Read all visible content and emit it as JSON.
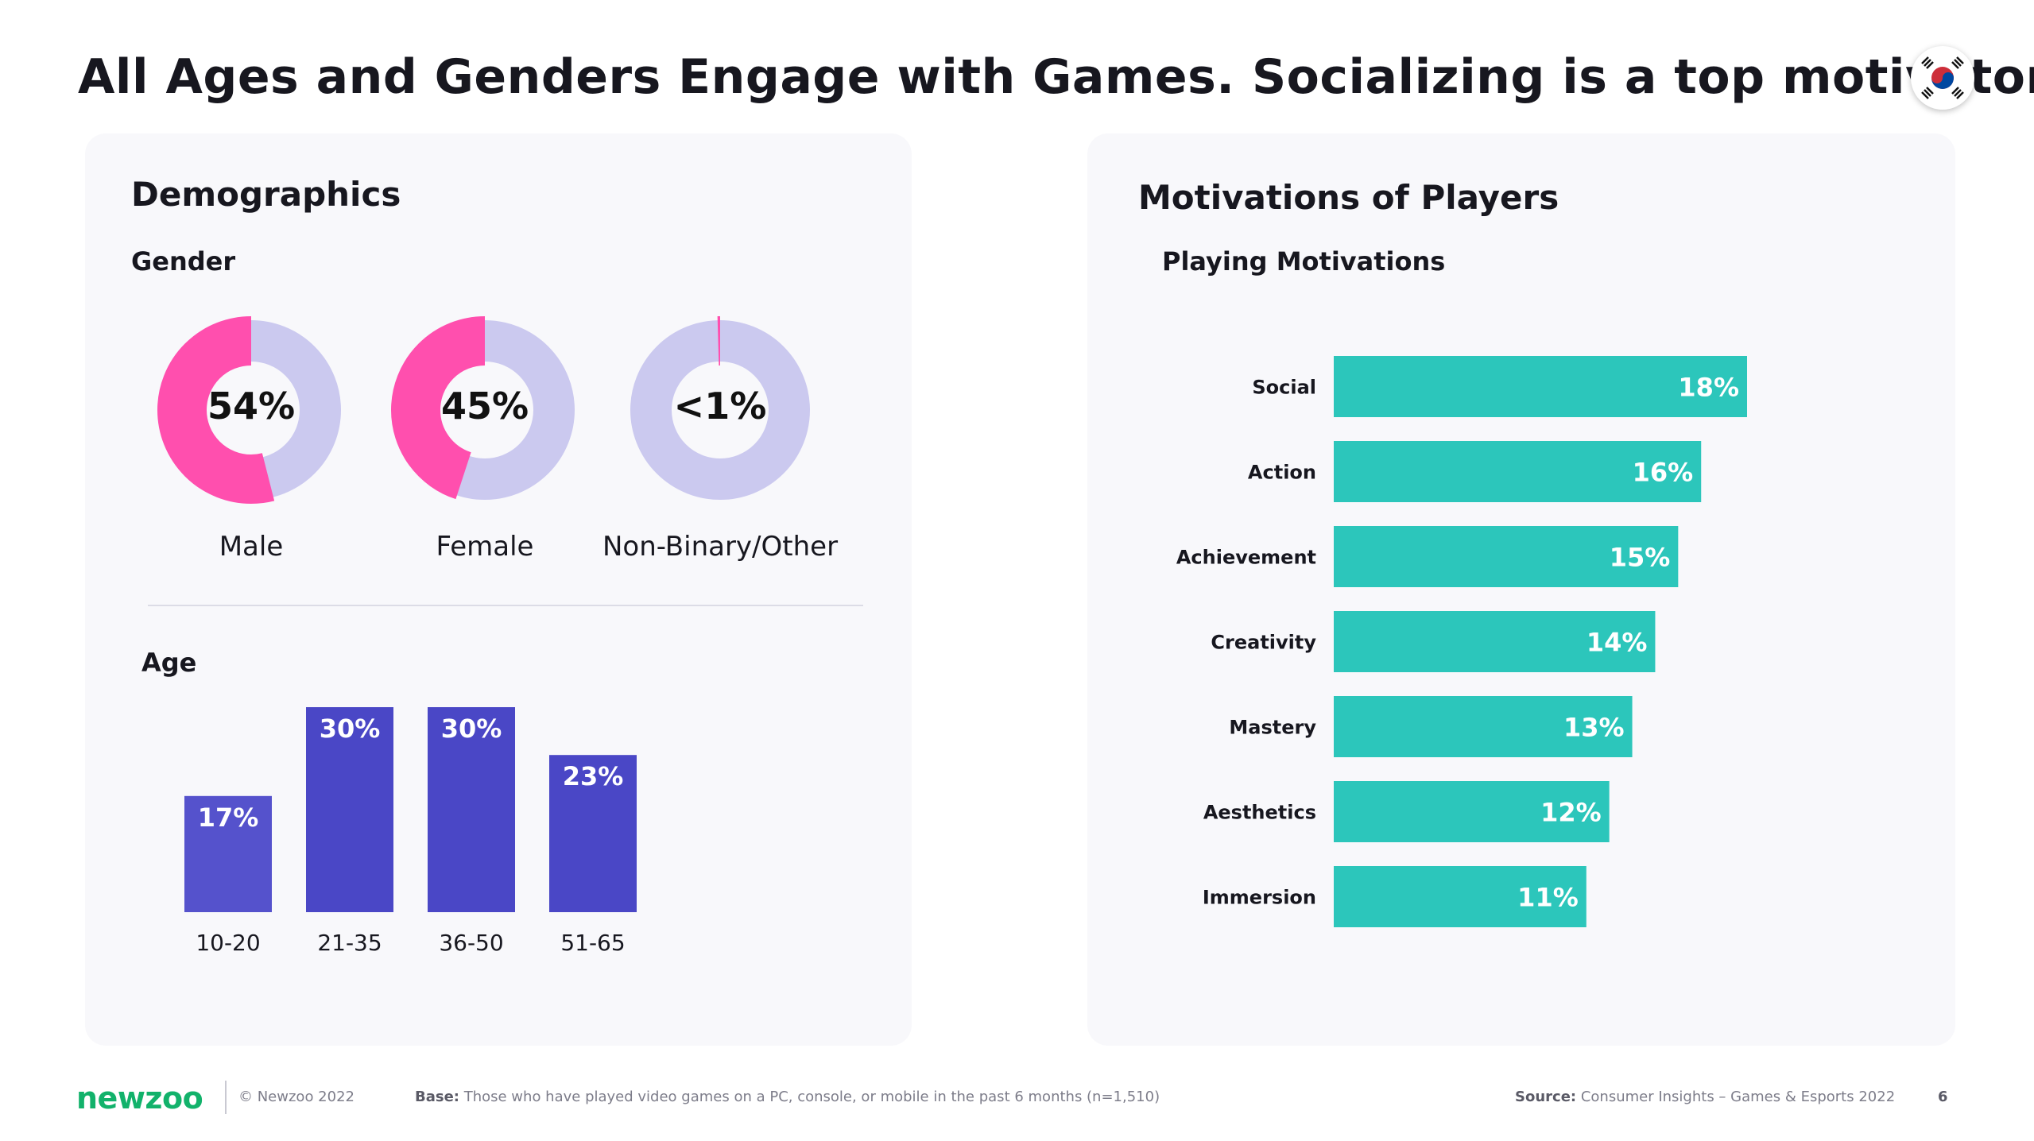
{
  "title": "All Ages and Genders Engage with Games. Socializing is a top motivator",
  "left_card": {
    "heading": "Demographics",
    "gender_label": "Gender",
    "age_label": "Age"
  },
  "right_card": {
    "heading": "Motivations of Players",
    "subheading": "Playing Motivations"
  },
  "colors": {
    "pink": "#ff4fae",
    "lavender": "#cbc9ef",
    "indigo": "#4a47c6",
    "indigo_light": "#5552cc",
    "teal": "#2cc6bb"
  },
  "chart_data": [
    {
      "type": "pie",
      "title": "Gender",
      "slices": [
        {
          "label": "Male",
          "value": 54,
          "display": "54%"
        },
        {
          "label": "Female",
          "value": 45,
          "display": "45%"
        },
        {
          "label": "Non-Binary/Other",
          "value": 0.5,
          "display": "<1%"
        }
      ]
    },
    {
      "type": "bar",
      "title": "Age",
      "categories": [
        "10-20",
        "21-35",
        "36-50",
        "51-65"
      ],
      "values": [
        17,
        30,
        30,
        23
      ],
      "labels": [
        "17%",
        "30%",
        "30%",
        "23%"
      ],
      "ylim": [
        0,
        30
      ]
    },
    {
      "type": "bar",
      "orientation": "horizontal",
      "title": "Playing Motivations",
      "categories": [
        "Social",
        "Action",
        "Achievement",
        "Creativity",
        "Mastery",
        "Aesthetics",
        "Immersion"
      ],
      "values": [
        18,
        16,
        15,
        14,
        13,
        12,
        11
      ],
      "labels": [
        "18%",
        "16%",
        "15%",
        "14%",
        "13%",
        "12%",
        "11%"
      ],
      "xlim": [
        0,
        18
      ]
    }
  ],
  "footer": {
    "logo": "newzoo",
    "copyright": "© Newzoo 2022",
    "base_label": "Base:",
    "base_text": " Those who have played video games on a PC, console, or mobile in the past 6 months (n=1,510)",
    "source_label": "Source:",
    "source_text": " Consumer Insights – Games & Esports 2022",
    "page_number": "6"
  }
}
